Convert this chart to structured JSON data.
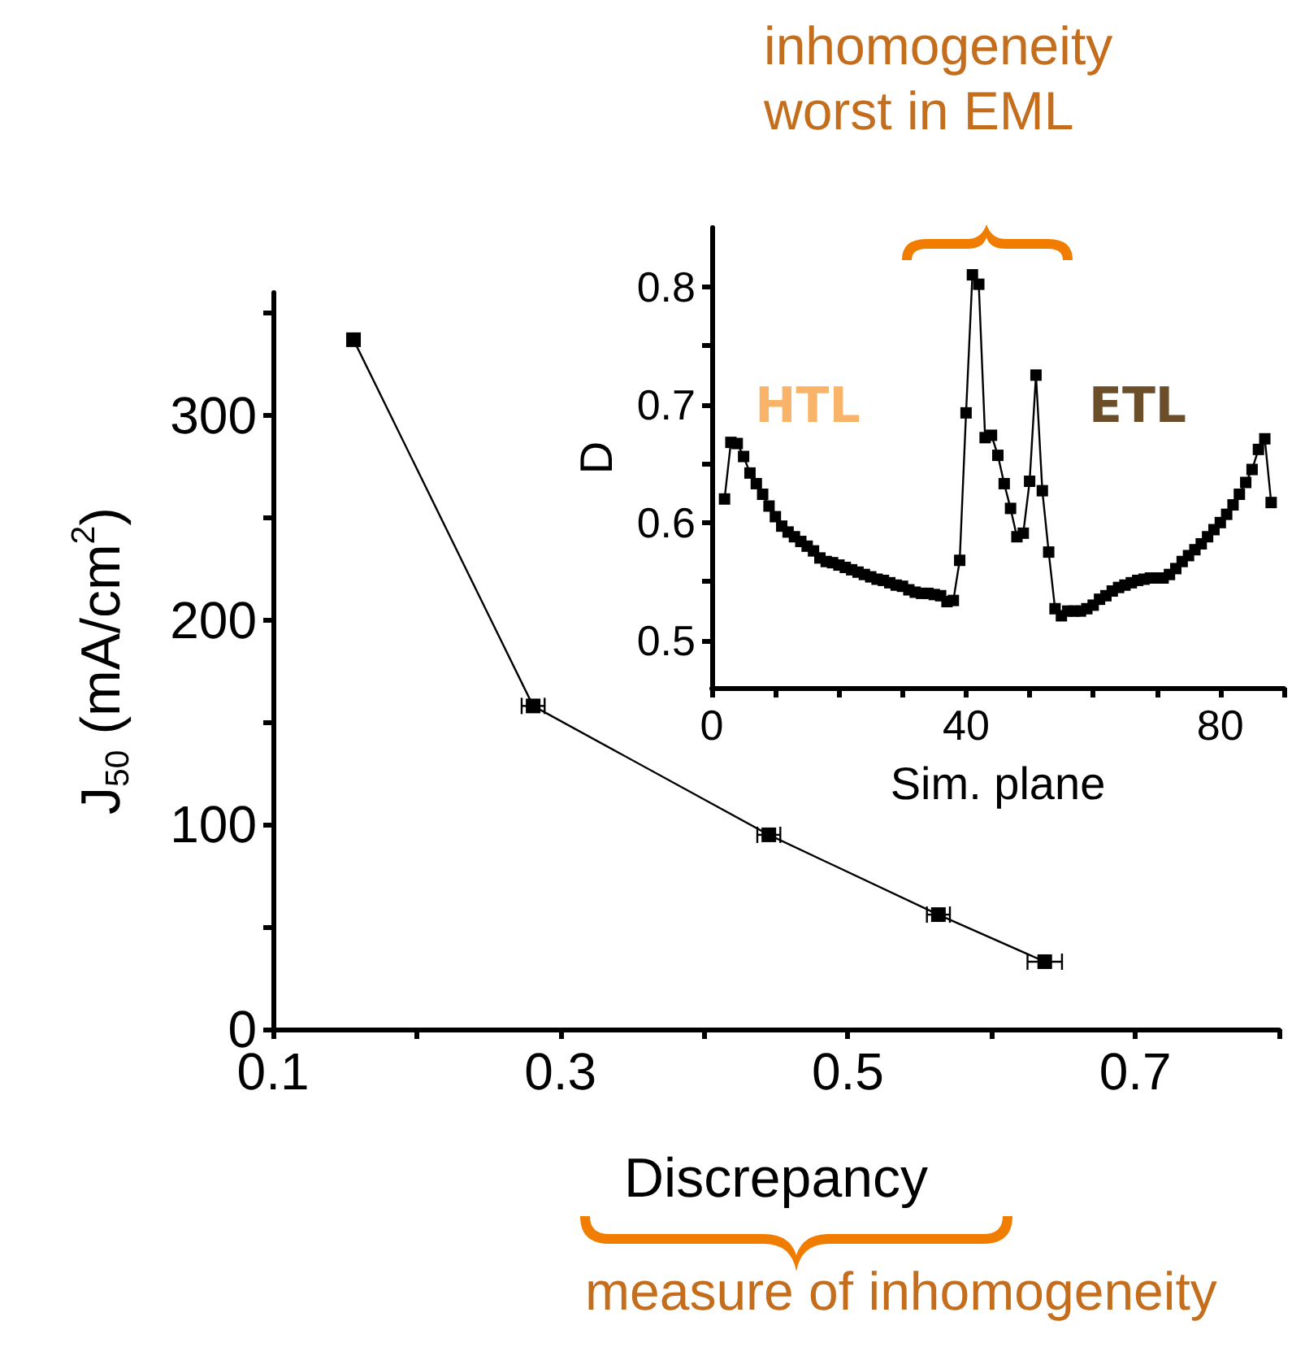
{
  "chart_data": [
    {
      "type": "line",
      "xlabel": "Discrepancy",
      "ylabel": "J$_{50}$ (mA/cm$^{2}$)",
      "x": [
        0.156,
        0.281,
        0.445,
        0.563,
        0.637
      ],
      "series": [
        {
          "color": "#000000",
          "values": [
            337,
            158,
            95,
            56,
            33
          ],
          "xerrors": [
            null,
            0.008,
            0.008,
            0.008,
            0.012
          ]
        }
      ],
      "xlim": [
        0.1,
        0.8
      ],
      "xticks": [
        0.1,
        {
          "value": 0.2,
          "label": null
        },
        0.3,
        {
          "value": 0.4,
          "label": null
        },
        0.5,
        {
          "value": 0.6,
          "label": null
        },
        0.7,
        {
          "value": 0.8,
          "label": null
        }
      ],
      "ylim": [
        0,
        360
      ],
      "yticks": [
        0,
        {
          "value": 50,
          "label": null
        },
        100,
        {
          "value": 150,
          "label": null
        },
        200,
        {
          "value": 250,
          "label": null
        },
        300,
        {
          "value": 350,
          "label": null
        }
      ],
      "marker": "square",
      "line_style": "solid",
      "grid": false,
      "annotations": [
        "inhomogeneity\nworst in EML",
        "measure of inhomogeneity"
      ]
    },
    {
      "type": "line",
      "xlabel": "Sim. plane",
      "ylabel": "D",
      "x": [
        2,
        3,
        4,
        5,
        6,
        7,
        8,
        9,
        10,
        11,
        12,
        13,
        14,
        15,
        16,
        17,
        18,
        19,
        20,
        21,
        22,
        23,
        24,
        25,
        26,
        27,
        28,
        29,
        30,
        31,
        32,
        33,
        34,
        35,
        36,
        37,
        38,
        39,
        40,
        41,
        42,
        43,
        44,
        45,
        46,
        47,
        48,
        49,
        50,
        51,
        52,
        53,
        54,
        55,
        56,
        57,
        58,
        59,
        60,
        61,
        62,
        63,
        64,
        65,
        66,
        67,
        68,
        69,
        70,
        71,
        72,
        73,
        74,
        75,
        76,
        77,
        78,
        79,
        80,
        81,
        82,
        83,
        84,
        85,
        86,
        87,
        88
      ],
      "series": [
        {
          "color": "#000000",
          "values": [
            0.62,
            0.668,
            0.667,
            0.656,
            0.642,
            0.633,
            0.624,
            0.614,
            0.605,
            0.597,
            0.592,
            0.588,
            0.584,
            0.58,
            0.576,
            0.57,
            0.567,
            0.566,
            0.564,
            0.562,
            0.56,
            0.558,
            0.556,
            0.554,
            0.552,
            0.551,
            0.549,
            0.547,
            0.546,
            0.543,
            0.541,
            0.54,
            0.54,
            0.539,
            0.538,
            0.533,
            0.534,
            0.568,
            0.693,
            0.81,
            0.802,
            0.672,
            0.674,
            0.657,
            0.633,
            0.612,
            0.588,
            0.591,
            0.635,
            0.725,
            0.627,
            0.575,
            0.527,
            0.521,
            0.525,
            0.525,
            0.525,
            0.527,
            0.53,
            0.535,
            0.538,
            0.542,
            0.545,
            0.547,
            0.549,
            0.551,
            0.552,
            0.553,
            0.553,
            0.553,
            0.556,
            0.561,
            0.567,
            0.572,
            0.577,
            0.582,
            0.588,
            0.594,
            0.6,
            0.607,
            0.615,
            0.624,
            0.634,
            0.645,
            0.662,
            0.671,
            0.617
          ]
        }
      ],
      "xlim": [
        0,
        90
      ],
      "xticks": [
        0,
        {
          "value": 10,
          "label": null
        },
        {
          "value": 20,
          "label": null
        },
        {
          "value": 30,
          "label": null
        },
        40,
        {
          "value": 50,
          "label": null
        },
        {
          "value": 60,
          "label": null
        },
        {
          "value": 70,
          "label": null
        },
        80,
        {
          "value": 90,
          "label": null
        }
      ],
      "ylim": [
        0.46,
        0.85
      ],
      "yticks": [
        0.5,
        {
          "value": 0.55,
          "label": null
        },
        0.6,
        {
          "value": 0.65,
          "label": null
        },
        0.7,
        {
          "value": 0.75,
          "label": null
        },
        0.8
      ],
      "marker": "square",
      "line_style": "solid",
      "grid": false,
      "annotations": [
        "HTL",
        "ETL"
      ]
    }
  ]
}
